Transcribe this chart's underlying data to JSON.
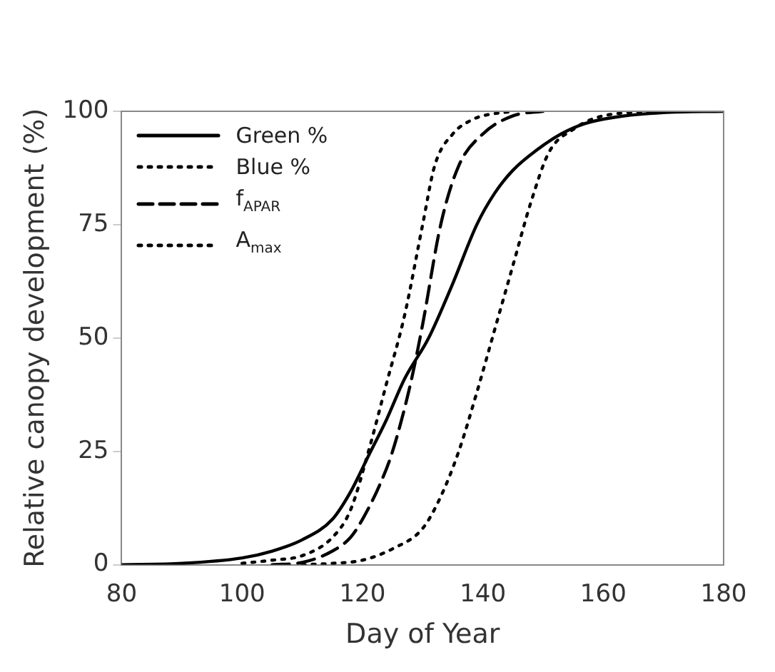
{
  "chart_data": {
    "type": "line",
    "xlabel": "Day of Year",
    "ylabel": "Relative canopy development (%)",
    "xlim": [
      80,
      180
    ],
    "xticks": [
      80,
      100,
      120,
      140,
      160,
      180
    ],
    "ylim": [
      0,
      100
    ],
    "yticks": [
      0,
      25,
      50,
      75,
      100
    ],
    "grid": false,
    "legend": "top left",
    "marker": "none",
    "series": [
      {
        "name": "Green %",
        "color": "#000000",
        "line_style": "solid",
        "x": [
          80,
          90,
          100,
          105,
          110,
          115,
          118,
          121,
          124,
          127,
          131,
          135,
          139,
          142,
          145,
          149,
          153,
          157,
          162,
          170,
          180
        ],
        "values": [
          0,
          0.3,
          1.5,
          3,
          5.5,
          10,
          16,
          24,
          32,
          41,
          50,
          62,
          75,
          82,
          87,
          91.5,
          95,
          97.3,
          98.7,
          99.7,
          100
        ]
      },
      {
        "name": "Blue %",
        "color": "#000000",
        "line_style": "dotted",
        "x": [
          100,
          105,
          110,
          115,
          118,
          121,
          124,
          127,
          130,
          132,
          135,
          138,
          140,
          145
        ],
        "values": [
          0.3,
          1,
          2,
          6,
          12,
          25,
          40,
          55,
          75,
          88,
          95,
          98,
          99,
          100
        ]
      },
      {
        "name": "f$_{APAR}$",
        "color": "#000000",
        "line_style": "dashed",
        "x": [
          105,
          110,
          115,
          118,
          120,
          123,
          125,
          128,
          130,
          133,
          136,
          140,
          145,
          150
        ],
        "values": [
          0,
          0.5,
          3,
          6,
          10,
          18,
          25,
          40,
          53,
          75,
          88,
          95,
          99,
          100
        ]
      },
      {
        "name": "A$_{max}$",
        "color": "#000000",
        "line_style": "dotted",
        "x": [
          110,
          115,
          120,
          125,
          130,
          133,
          136,
          139,
          142,
          145,
          148,
          151,
          155,
          160,
          170
        ],
        "values": [
          0,
          0.3,
          1,
          3.5,
          8,
          15,
          25,
          38,
          52,
          66,
          80,
          91,
          96,
          99,
          100
        ]
      }
    ]
  }
}
